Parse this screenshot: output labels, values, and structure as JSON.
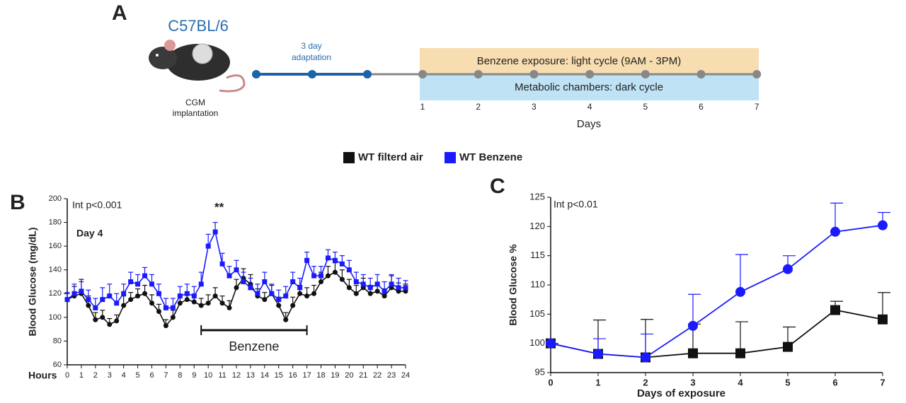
{
  "diagram": {
    "letter": "A",
    "strain": "C57BL/6",
    "implant": [
      "CGM",
      "implantation"
    ],
    "adaptation": [
      "3 day",
      "adaptation"
    ],
    "exposure": "Benzene exposure: light cycle (9AM - 3PM)",
    "chambers": "Metabolic chambers: dark cycle",
    "days": [
      "1",
      "2",
      "3",
      "4",
      "5",
      "6",
      "7"
    ],
    "days_label": "Days"
  },
  "chart_data": [
    {
      "type": "line",
      "letter": "B",
      "xlabel": "Hours",
      "ylabel": "Blood Glucose (mg/dL)",
      "annotations": [
        "Int p<0.001",
        "Day 4",
        "**"
      ],
      "bracket": {
        "label": "Benzene",
        "start": 9.5,
        "end": 17
      },
      "xlim": [
        0,
        24
      ],
      "xticks": [
        0,
        1,
        2,
        3,
        4,
        5,
        6,
        7,
        8,
        9,
        10,
        11,
        12,
        13,
        14,
        15,
        16,
        17,
        18,
        19,
        20,
        21,
        22,
        23,
        24
      ],
      "ylim": [
        60,
        200
      ],
      "yticks": [
        60,
        80,
        100,
        120,
        140,
        160,
        180,
        200
      ],
      "x": [
        0,
        0.5,
        1,
        1.5,
        2,
        2.5,
        3,
        3.5,
        4,
        4.5,
        5,
        5.5,
        6,
        6.5,
        7,
        7.5,
        8,
        8.5,
        9,
        9.5,
        10,
        10.5,
        11,
        11.5,
        12,
        12.5,
        13,
        13.5,
        14,
        14.5,
        15,
        15.5,
        16,
        16.5,
        17,
        17.5,
        18,
        18.5,
        19,
        19.5,
        20,
        20.5,
        21,
        21.5,
        22,
        22.5,
        23,
        23.5,
        24
      ],
      "series": [
        {
          "name": "WT filterd air",
          "color": "#111111",
          "marker": "circle",
          "values": [
            115,
            118,
            120,
            110,
            98,
            100,
            94,
            97,
            110,
            115,
            118,
            120,
            112,
            105,
            93,
            100,
            112,
            115,
            113,
            110,
            112,
            118,
            112,
            108,
            125,
            133,
            128,
            118,
            115,
            120,
            110,
            98,
            110,
            120,
            118,
            120,
            130,
            135,
            138,
            132,
            125,
            120,
            125,
            120,
            122,
            118,
            125,
            122,
            122
          ],
          "errors": [
            5,
            8,
            12,
            8,
            6,
            6,
            5,
            5,
            8,
            6,
            6,
            7,
            7,
            6,
            5,
            6,
            7,
            6,
            6,
            6,
            7,
            7,
            6,
            6,
            7,
            8,
            8,
            6,
            6,
            7,
            7,
            6,
            7,
            7,
            7,
            7,
            8,
            8,
            8,
            8,
            7,
            7,
            8,
            7,
            7,
            6,
            10,
            7,
            6
          ]
        },
        {
          "name": "WT Benzene",
          "color": "#1a1aff",
          "marker": "square",
          "values": [
            115,
            120,
            122,
            115,
            108,
            115,
            118,
            112,
            120,
            130,
            128,
            135,
            128,
            120,
            108,
            108,
            118,
            120,
            118,
            128,
            160,
            172,
            145,
            135,
            140,
            130,
            125,
            120,
            130,
            120,
            115,
            118,
            130,
            125,
            148,
            135,
            135,
            150,
            148,
            145,
            140,
            130,
            128,
            125,
            128,
            122,
            128,
            125,
            125
          ],
          "errors": [
            6,
            8,
            8,
            8,
            8,
            10,
            10,
            8,
            8,
            8,
            8,
            7,
            8,
            8,
            8,
            8,
            8,
            8,
            8,
            10,
            10,
            8,
            9,
            8,
            8,
            8,
            8,
            8,
            8,
            8,
            8,
            8,
            8,
            8,
            7,
            8,
            8,
            7,
            7,
            7,
            8,
            8,
            8,
            8,
            8,
            8,
            8,
            8,
            6
          ]
        }
      ]
    },
    {
      "type": "line",
      "letter": "C",
      "xlabel": "Days of exposure",
      "ylabel": "Blood Glucose  %",
      "annotations": [
        "Int p<0.01"
      ],
      "xlim": [
        0,
        7
      ],
      "xticks": [
        0,
        1,
        2,
        3,
        4,
        5,
        6,
        7
      ],
      "ylim": [
        95,
        125
      ],
      "yticks": [
        95,
        100,
        105,
        110,
        115,
        120,
        125
      ],
      "x": [
        0,
        1,
        2,
        3,
        4,
        5,
        6,
        7
      ],
      "series": [
        {
          "name": "WT filterd air",
          "color": "#111111",
          "marker": "square",
          "values": [
            100,
            98.2,
            97.6,
            98.3,
            98.3,
            99.4,
            105.7,
            104.1
          ],
          "errors": [
            0,
            5.8,
            6.5,
            5,
            5.4,
            3.4,
            1.5,
            4.6
          ]
        },
        {
          "name": "WT Benzene",
          "color": "#1a1aff",
          "marker": "circle",
          "values": [
            100,
            98.2,
            97.6,
            103,
            108.8,
            112.7,
            119.1,
            120.2
          ],
          "errors": [
            0,
            2.6,
            4,
            5.4,
            6.4,
            2.3,
            4.9,
            2.2
          ]
        }
      ]
    }
  ]
}
